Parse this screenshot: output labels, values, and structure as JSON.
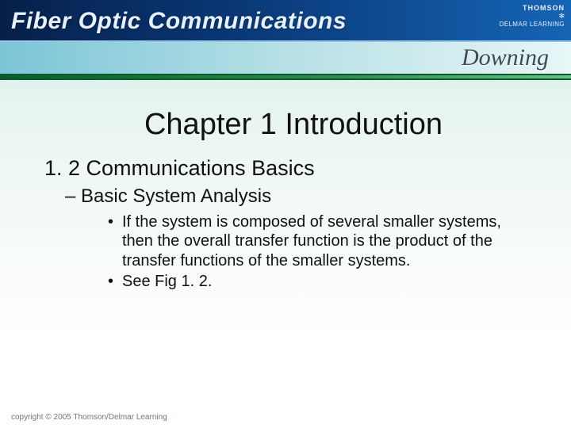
{
  "banner": {
    "book_title": "Fiber Optic Communications",
    "author": "Downing",
    "publisher_line1": "THOMSON",
    "publisher_star": "✻",
    "publisher_line2": "DELMAR LEARNING",
    "colors": {
      "blue_stripe_start": "#06204a",
      "blue_stripe_end": "#1565b5",
      "author_stripe_start": "#7cc5d8",
      "author_stripe_end": "#e8f6f7",
      "green_stripe_start": "#0a5a2d",
      "green_stripe_end": "#6bbf86"
    }
  },
  "body": {
    "chapter_title": "Chapter 1 Introduction",
    "section_title": "1. 2 Communications Basics",
    "subsection_title": "– Basic System Analysis",
    "bullets": [
      "If the system is composed of several smaller systems, then the overall transfer function is the product of the transfer functions of the smaller systems.",
      "See Fig 1. 2."
    ]
  },
  "footer": {
    "copyright": "copyright © 2005 Thomson/Delmar Learning"
  },
  "typography": {
    "chapter_title_fontsize": 38,
    "section_fontsize": 27,
    "subsection_fontsize": 24,
    "bullet_fontsize": 20,
    "font_family": "Arial"
  },
  "background": {
    "gradient_top": "#cde9e2",
    "gradient_bottom": "#ffffff"
  }
}
